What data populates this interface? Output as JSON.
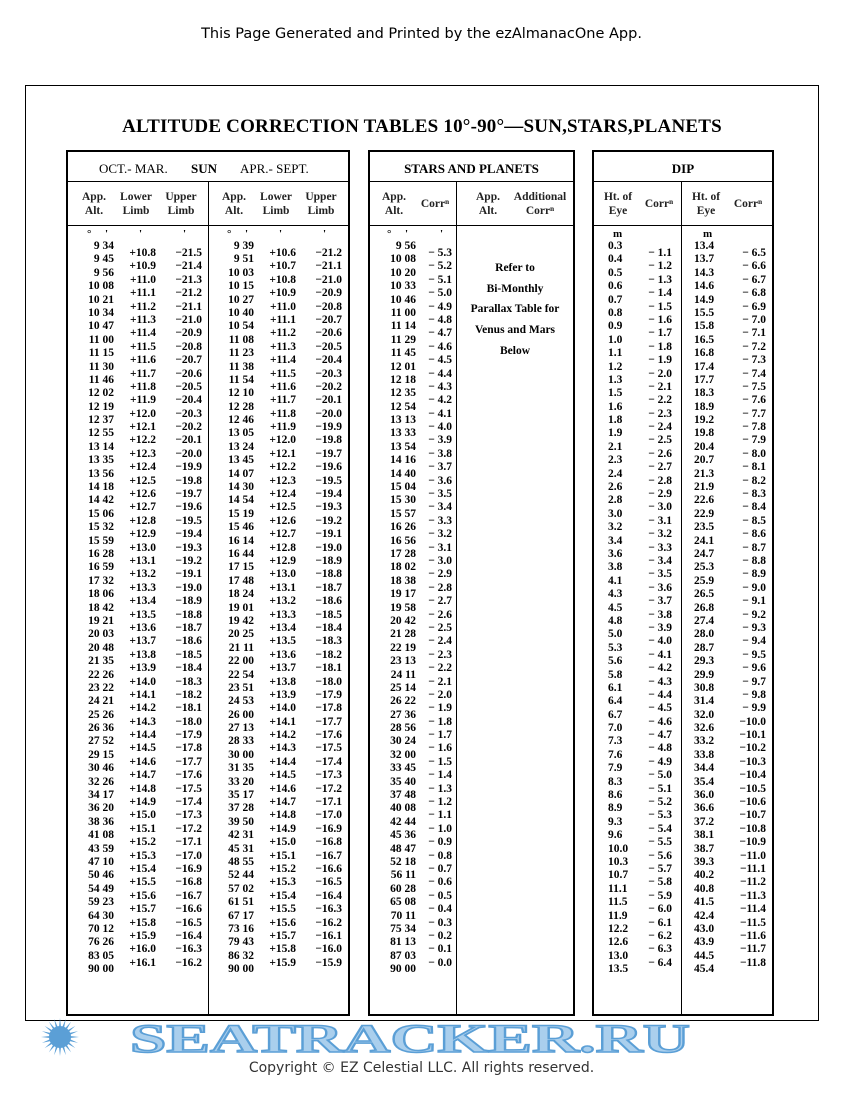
{
  "header_note": "This Page Generated and Printed by the ezAlmanacOne App.",
  "title": "ALTITUDE CORRECTION TABLES 10°-90°—SUN,STARS,PLANETS",
  "footer": "Copyright © EZ Celestial LLC. All rights reserved.",
  "watermark": "SEATRACKER.RU",
  "watermark_color": "#3f8fd0",
  "sun": {
    "oct_label": "OCT.- MAR.",
    "sun_label": "SUN",
    "apr_label": "APR.- SEPT.",
    "col_app_alt": [
      "App.",
      "Alt."
    ],
    "col_lower": [
      "Lower",
      "Limb"
    ],
    "col_upper": [
      "Upper",
      "Limb"
    ],
    "deg_sym": "°",
    "min_sym": "'",
    "oct": {
      "alt": [
        "9 34",
        "9 45",
        "9 56",
        "10 08",
        "10 21",
        "10 34",
        "10 47",
        "11 00",
        "11 15",
        "11 30",
        "11 46",
        "12 02",
        "12 19",
        "12 37",
        "12 55",
        "13 14",
        "13 35",
        "13 56",
        "14 18",
        "14 42",
        "15 06",
        "15 32",
        "15 59",
        "16 28",
        "16 59",
        "17 32",
        "18 06",
        "18 42",
        "19 21",
        "20 03",
        "20 48",
        "21 35",
        "22 26",
        "23 22",
        "24 21",
        "25 26",
        "26 36",
        "27 52",
        "29 15",
        "30 46",
        "32 26",
        "34 17",
        "36 20",
        "38 36",
        "41 08",
        "43 59",
        "47 10",
        "50 46",
        "54 49",
        "59 23",
        "64 30",
        "70 12",
        "76 26",
        "83 05",
        "90 00"
      ],
      "lower": [
        "+10.8",
        "+10.9",
        "+11.0",
        "+11.1",
        "+11.2",
        "+11.3",
        "+11.4",
        "+11.5",
        "+11.6",
        "+11.7",
        "+11.8",
        "+11.9",
        "+12.0",
        "+12.1",
        "+12.2",
        "+12.3",
        "+12.4",
        "+12.5",
        "+12.6",
        "+12.7",
        "+12.8",
        "+12.9",
        "+13.0",
        "+13.1",
        "+13.2",
        "+13.3",
        "+13.4",
        "+13.5",
        "+13.6",
        "+13.7",
        "+13.8",
        "+13.9",
        "+14.0",
        "+14.1",
        "+14.2",
        "+14.3",
        "+14.4",
        "+14.5",
        "+14.6",
        "+14.7",
        "+14.8",
        "+14.9",
        "+15.0",
        "+15.1",
        "+15.2",
        "+15.3",
        "+15.4",
        "+15.5",
        "+15.6",
        "+15.7",
        "+15.8",
        "+15.9",
        "+16.0",
        "+16.1"
      ],
      "upper": [
        "−21.5",
        "−21.4",
        "−21.3",
        "−21.2",
        "−21.1",
        "−21.0",
        "−20.9",
        "−20.8",
        "−20.7",
        "−20.6",
        "−20.5",
        "−20.4",
        "−20.3",
        "−20.2",
        "−20.1",
        "−20.0",
        "−19.9",
        "−19.8",
        "−19.7",
        "−19.6",
        "−19.5",
        "−19.4",
        "−19.3",
        "−19.2",
        "−19.1",
        "−19.0",
        "−18.9",
        "−18.8",
        "−18.7",
        "−18.6",
        "−18.5",
        "−18.4",
        "−18.3",
        "−18.2",
        "−18.1",
        "−18.0",
        "−17.9",
        "−17.8",
        "−17.7",
        "−17.6",
        "−17.5",
        "−17.4",
        "−17.3",
        "−17.2",
        "−17.1",
        "−17.0",
        "−16.9",
        "−16.8",
        "−16.7",
        "−16.6",
        "−16.5",
        "−16.4",
        "−16.3",
        "−16.2"
      ]
    },
    "apr": {
      "alt": [
        "9 39",
        "9 51",
        "10 03",
        "10 15",
        "10 27",
        "10 40",
        "10 54",
        "11 08",
        "11 23",
        "11 38",
        "11 54",
        "12 10",
        "12 28",
        "12 46",
        "13 05",
        "13 24",
        "13 45",
        "14 07",
        "14 30",
        "14 54",
        "15 19",
        "15 46",
        "16 14",
        "16 44",
        "17 15",
        "17 48",
        "18 24",
        "19 01",
        "19 42",
        "20 25",
        "21 11",
        "22 00",
        "22 54",
        "23 51",
        "24 53",
        "26 00",
        "27 13",
        "28 33",
        "30 00",
        "31 35",
        "33 20",
        "35 17",
        "37 28",
        "39 50",
        "42 31",
        "45 31",
        "48 55",
        "52 44",
        "57 02",
        "61 51",
        "67 17",
        "73 16",
        "79 43",
        "86 32",
        "90 00"
      ],
      "lower": [
        "+10.6",
        "+10.7",
        "+10.8",
        "+10.9",
        "+11.0",
        "+11.1",
        "+11.2",
        "+11.3",
        "+11.4",
        "+11.5",
        "+11.6",
        "+11.7",
        "+11.8",
        "+11.9",
        "+12.0",
        "+12.1",
        "+12.2",
        "+12.3",
        "+12.4",
        "+12.5",
        "+12.6",
        "+12.7",
        "+12.8",
        "+12.9",
        "+13.0",
        "+13.1",
        "+13.2",
        "+13.3",
        "+13.4",
        "+13.5",
        "+13.6",
        "+13.7",
        "+13.8",
        "+13.9",
        "+14.0",
        "+14.1",
        "+14.2",
        "+14.3",
        "+14.4",
        "+14.5",
        "+14.6",
        "+14.7",
        "+14.8",
        "+14.9",
        "+15.0",
        "+15.1",
        "+15.2",
        "+15.3",
        "+15.4",
        "+15.5",
        "+15.6",
        "+15.7",
        "+15.8",
        "+15.9"
      ],
      "upper": [
        "−21.2",
        "−21.1",
        "−21.0",
        "−20.9",
        "−20.8",
        "−20.7",
        "−20.6",
        "−20.5",
        "−20.4",
        "−20.3",
        "−20.2",
        "−20.1",
        "−20.0",
        "−19.9",
        "−19.8",
        "−19.7",
        "−19.6",
        "−19.5",
        "−19.4",
        "−19.3",
        "−19.2",
        "−19.1",
        "−19.0",
        "−18.9",
        "−18.8",
        "−18.7",
        "−18.6",
        "−18.5",
        "−18.4",
        "−18.3",
        "−18.2",
        "−18.1",
        "−18.0",
        "−17.9",
        "−17.8",
        "−17.7",
        "−17.6",
        "−17.5",
        "−17.4",
        "−17.3",
        "−17.2",
        "−17.1",
        "−17.0",
        "−16.9",
        "−16.8",
        "−16.7",
        "−16.6",
        "−16.5",
        "−16.4",
        "−16.3",
        "−16.2",
        "−16.1",
        "−16.0",
        "−15.9"
      ]
    }
  },
  "stars": {
    "title": "STARS AND PLANETS",
    "col_app_alt": [
      "App.",
      "Alt."
    ],
    "col_corr": "Corrⁿ",
    "col_app_alt2": [
      "App.",
      "Alt."
    ],
    "col_additional": [
      "Additional",
      "Corrⁿ"
    ],
    "deg_sym": "°",
    "min_sym": "'",
    "alt": [
      "9 56",
      "10 08",
      "10 20",
      "10 33",
      "10 46",
      "11 00",
      "11 14",
      "11 29",
      "11 45",
      "12 01",
      "12 18",
      "12 35",
      "12 54",
      "13 13",
      "13 33",
      "13 54",
      "14 16",
      "14 40",
      "15 04",
      "15 30",
      "15 57",
      "16 26",
      "16 56",
      "17 28",
      "18 02",
      "18 38",
      "19 17",
      "19 58",
      "20 42",
      "21 28",
      "22 19",
      "23 13",
      "24 11",
      "25 14",
      "26 22",
      "27 36",
      "28 56",
      "30 24",
      "32 00",
      "33 45",
      "35 40",
      "37 48",
      "40 08",
      "42 44",
      "45 36",
      "48 47",
      "52 18",
      "56 11",
      "60 28",
      "65 08",
      "70 11",
      "75 34",
      "81 13",
      "87 03",
      "90 00"
    ],
    "corr": [
      "− 5.3",
      "− 5.2",
      "− 5.1",
      "− 5.0",
      "− 4.9",
      "− 4.8",
      "− 4.7",
      "− 4.6",
      "− 4.5",
      "− 4.4",
      "− 4.3",
      "− 4.2",
      "− 4.1",
      "− 4.0",
      "− 3.9",
      "− 3.8",
      "− 3.7",
      "− 3.6",
      "− 3.5",
      "− 3.4",
      "− 3.3",
      "− 3.2",
      "− 3.1",
      "− 3.0",
      "− 2.9",
      "− 2.8",
      "− 2.7",
      "− 2.6",
      "− 2.5",
      "− 2.4",
      "− 2.3",
      "− 2.2",
      "− 2.1",
      "− 2.0",
      "− 1.9",
      "− 1.8",
      "− 1.7",
      "− 1.6",
      "− 1.5",
      "− 1.4",
      "− 1.3",
      "− 1.2",
      "− 1.1",
      "− 1.0",
      "− 0.9",
      "− 0.8",
      "− 0.7",
      "− 0.6",
      "− 0.5",
      "− 0.4",
      "− 0.3",
      "− 0.2",
      "− 0.1",
      "− 0.0"
    ],
    "note": [
      "Refer to",
      "Bi-Monthly",
      "Parallax Table for",
      "Venus and Mars",
      "Below"
    ]
  },
  "dip": {
    "title": "DIP",
    "col_ht": [
      "Ht. of",
      "Eye"
    ],
    "col_corr": "Corrⁿ",
    "unit": "m",
    "ht1": [
      "0.3",
      "0.4",
      "0.5",
      "0.6",
      "0.7",
      "0.8",
      "0.9",
      "1.0",
      "1.1",
      "1.2",
      "1.3",
      "1.5",
      "1.6",
      "1.8",
      "1.9",
      "2.1",
      "2.3",
      "2.4",
      "2.6",
      "2.8",
      "3.0",
      "3.2",
      "3.4",
      "3.6",
      "3.8",
      "4.1",
      "4.3",
      "4.5",
      "4.8",
      "5.0",
      "5.3",
      "5.6",
      "5.8",
      "6.1",
      "6.4",
      "6.7",
      "7.0",
      "7.3",
      "7.6",
      "7.9",
      "8.3",
      "8.6",
      "8.9",
      "9.3",
      "9.6",
      "10.0",
      "10.3",
      "10.7",
      "11.1",
      "11.5",
      "11.9",
      "12.2",
      "12.6",
      "13.0",
      "13.5"
    ],
    "corr1": [
      "− 1.1",
      "− 1.2",
      "− 1.3",
      "− 1.4",
      "− 1.5",
      "− 1.6",
      "− 1.7",
      "− 1.8",
      "− 1.9",
      "− 2.0",
      "− 2.1",
      "− 2.2",
      "− 2.3",
      "− 2.4",
      "− 2.5",
      "− 2.6",
      "− 2.7",
      "− 2.8",
      "− 2.9",
      "− 3.0",
      "− 3.1",
      "− 3.2",
      "− 3.3",
      "− 3.4",
      "− 3.5",
      "− 3.6",
      "− 3.7",
      "− 3.8",
      "− 3.9",
      "− 4.0",
      "− 4.1",
      "− 4.2",
      "− 4.3",
      "− 4.4",
      "− 4.5",
      "− 4.6",
      "− 4.7",
      "− 4.8",
      "− 4.9",
      "− 5.0",
      "− 5.1",
      "− 5.2",
      "− 5.3",
      "− 5.4",
      "− 5.5",
      "− 5.6",
      "− 5.7",
      "− 5.8",
      "− 5.9",
      "− 6.0",
      "− 6.1",
      "− 6.2",
      "− 6.3",
      "− 6.4"
    ],
    "ht2": [
      "13.4",
      "13.7",
      "14.3",
      "14.6",
      "14.9",
      "15.5",
      "15.8",
      "16.5",
      "16.8",
      "17.4",
      "17.7",
      "18.3",
      "18.9",
      "19.2",
      "19.8",
      "20.4",
      "20.7",
      "21.3",
      "21.9",
      "22.6",
      "22.9",
      "23.5",
      "24.1",
      "24.7",
      "25.3",
      "25.9",
      "26.5",
      "26.8",
      "27.4",
      "28.0",
      "28.7",
      "29.3",
      "29.9",
      "30.8",
      "31.4",
      "32.0",
      "32.6",
      "33.2",
      "33.8",
      "34.4",
      "35.4",
      "36.0",
      "36.6",
      "37.2",
      "38.1",
      "38.7",
      "39.3",
      "40.2",
      "40.8",
      "41.5",
      "42.4",
      "43.0",
      "43.9",
      "44.5",
      "45.4"
    ],
    "corr2": [
      "− 6.5",
      "− 6.6",
      "− 6.7",
      "− 6.8",
      "− 6.9",
      "− 7.0",
      "− 7.1",
      "− 7.2",
      "− 7.3",
      "− 7.4",
      "− 7.5",
      "− 7.6",
      "− 7.7",
      "− 7.8",
      "− 7.9",
      "− 8.0",
      "− 8.1",
      "− 8.2",
      "− 8.3",
      "− 8.4",
      "− 8.5",
      "− 8.6",
      "− 8.7",
      "− 8.8",
      "− 8.9",
      "− 9.0",
      "− 9.1",
      "− 9.2",
      "− 9.3",
      "− 9.4",
      "− 9.5",
      "− 9.6",
      "− 9.7",
      "− 9.8",
      "− 9.9",
      "−10.0",
      "−10.1",
      "−10.2",
      "−10.3",
      "−10.4",
      "−10.5",
      "−10.6",
      "−10.7",
      "−10.8",
      "−10.9",
      "−11.0",
      "−11.1",
      "−11.2",
      "−11.3",
      "−11.4",
      "−11.5",
      "−11.6",
      "−11.7",
      "−11.8"
    ]
  }
}
